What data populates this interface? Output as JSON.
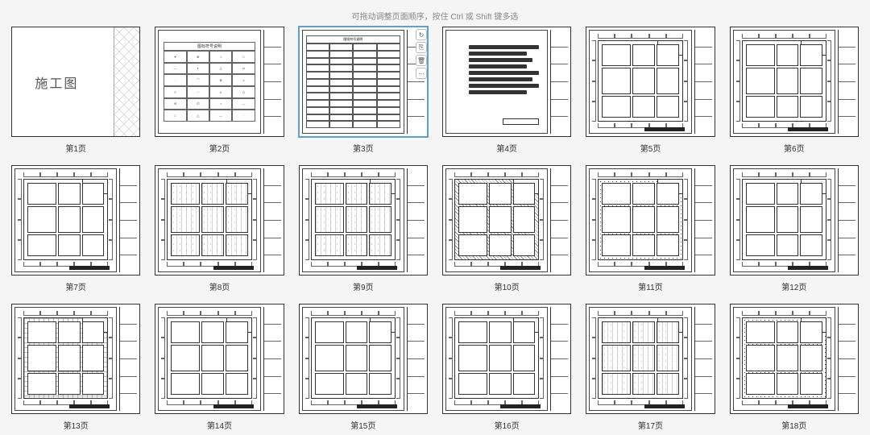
{
  "hint_text": "可拖动调整页面顺序，按住 Ctrl 或 Shift 键多选",
  "cover_title": "施工图",
  "legend_title": "图标符号说明",
  "directory_title": "图纸符号说明",
  "selected_index": 2,
  "toolbar": {
    "rotate": "↻",
    "copy": "⎘",
    "delete": "🗑",
    "more": "⋯"
  },
  "pages": [
    {
      "label": "第1页",
      "type": "cover"
    },
    {
      "label": "第2页",
      "type": "legend"
    },
    {
      "label": "第3页",
      "type": "directory"
    },
    {
      "label": "第4页",
      "type": "material"
    },
    {
      "label": "第5页",
      "type": "plan-empty"
    },
    {
      "label": "第6页",
      "type": "plan-empty"
    },
    {
      "label": "第7页",
      "type": "plan-empty"
    },
    {
      "label": "第8页",
      "type": "plan-furnished"
    },
    {
      "label": "第9页",
      "type": "plan-furnished"
    },
    {
      "label": "第10页",
      "type": "plan-hatched"
    },
    {
      "label": "第11页",
      "type": "plan-dotted"
    },
    {
      "label": "第12页",
      "type": "plan-empty"
    },
    {
      "label": "第13页",
      "type": "plan-grid"
    },
    {
      "label": "第14页",
      "type": "plan-empty"
    },
    {
      "label": "第15页",
      "type": "plan-empty"
    },
    {
      "label": "第16页",
      "type": "plan-empty"
    },
    {
      "label": "第17页",
      "type": "plan-furnished"
    },
    {
      "label": "第18页",
      "type": "plan-dotted"
    }
  ],
  "colors": {
    "page_bg": "#f5f5f5",
    "thumb_bg": "#ffffff",
    "border": "#333333",
    "selection": "#5aa0d8",
    "text": "#333333",
    "hint": "#888888"
  }
}
